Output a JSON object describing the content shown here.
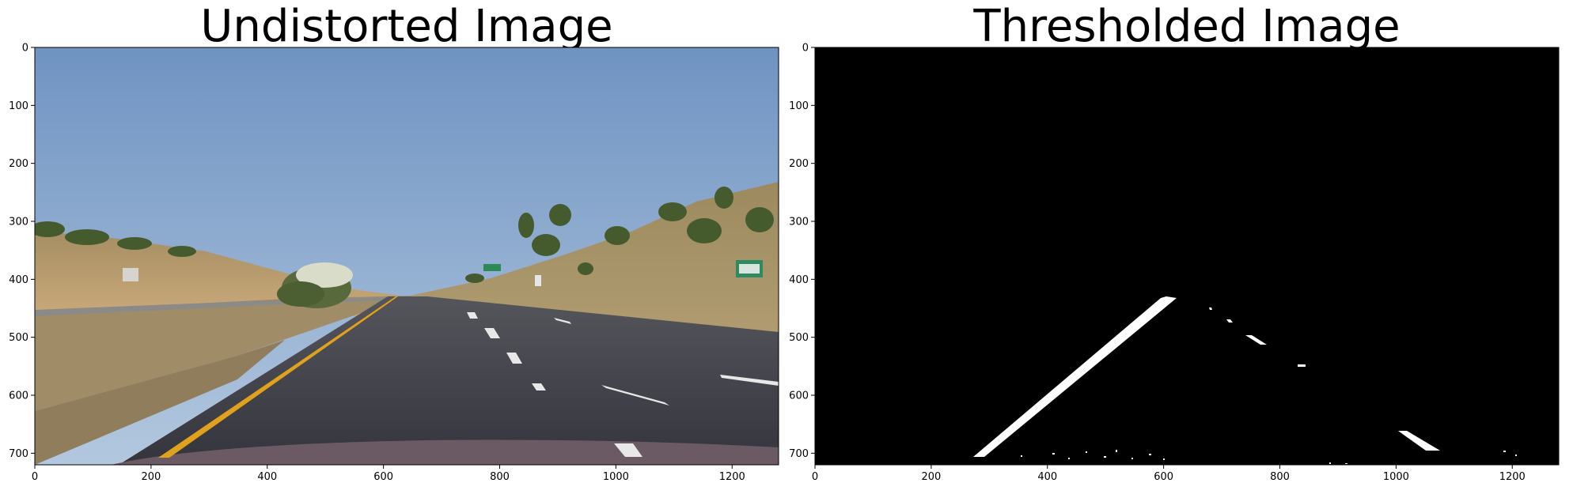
{
  "chart_data": [
    {
      "type": "image",
      "title": "Undistorted Image",
      "xlim": [
        0,
        1280
      ],
      "ylim": [
        720,
        0
      ],
      "xticks": [
        0,
        200,
        400,
        600,
        800,
        1000,
        1200
      ],
      "yticks": [
        0,
        100,
        200,
        300,
        400,
        500,
        600,
        700
      ],
      "content": "road-photo",
      "colors": {
        "sky_top": "#6f93c2",
        "sky_bottom": "#a9c2dd",
        "road": "#3d3d46",
        "yellow_line": "#e0a21c",
        "hill": "#b79c72",
        "trees": "#465b2d"
      }
    },
    {
      "type": "image",
      "title": "Thresholded Image",
      "xlim": [
        0,
        1280
      ],
      "ylim": [
        720,
        0
      ],
      "xticks": [
        0,
        200,
        400,
        600,
        800,
        1000,
        1200
      ],
      "yticks": [
        0,
        100,
        200,
        300,
        400,
        500,
        600,
        700
      ],
      "content": "binary-lane-mask",
      "colors": {
        "background": "#000000",
        "foreground": "#ffffff"
      }
    }
  ]
}
